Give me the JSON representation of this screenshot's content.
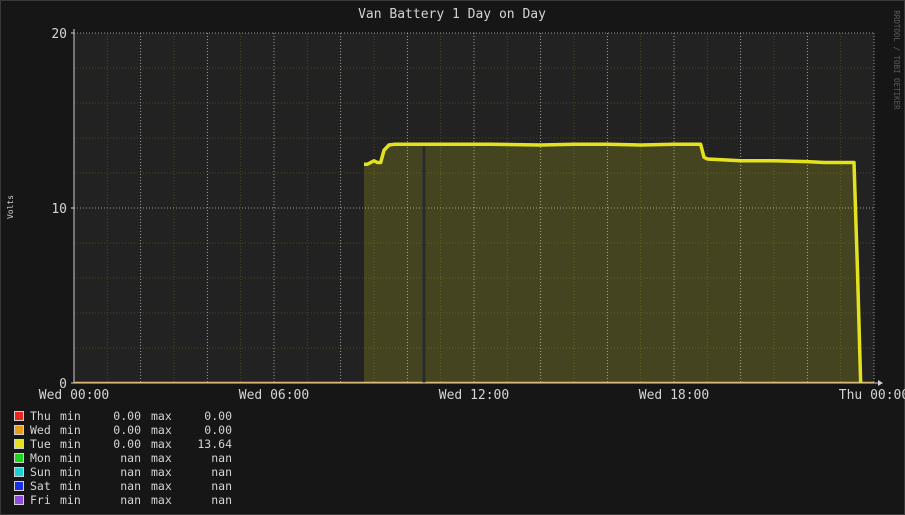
{
  "chart_data": {
    "type": "area",
    "title": "Van Battery 1 Day on Day",
    "ylabel": "Volts",
    "watermark": "RRDTOOL / TOBI OETIKER",
    "x_ticks": [
      "Wed 00:00",
      "Wed 06:00",
      "Wed 12:00",
      "Wed 18:00",
      "Thu 00:00"
    ],
    "xlim": [
      0,
      24
    ],
    "y_ticks": [
      "0",
      "10",
      "20"
    ],
    "ylim": [
      0,
      20
    ],
    "grid": true,
    "series": [
      {
        "name": "Thu",
        "color": "#e8281e",
        "min": "0.00",
        "max": "0.00",
        "x": [
          0,
          24
        ],
        "y": [
          0,
          0
        ]
      },
      {
        "name": "Wed",
        "color": "#e89c1e",
        "min": "0.00",
        "max": "0.00",
        "x": [
          0,
          24
        ],
        "y": [
          0,
          0
        ]
      },
      {
        "name": "Tue",
        "color": "#e4e21e",
        "min": "0.00",
        "max": "13.64",
        "x": [
          8.7,
          8.8,
          9.0,
          9.1,
          9.2,
          9.3,
          9.45,
          9.6,
          10.0,
          11.0,
          12.5,
          14.0,
          15.0,
          16.0,
          17.0,
          18.0,
          18.8,
          18.9,
          19.0,
          19.5,
          20.0,
          21.0,
          22.0,
          22.5,
          23.4,
          23.5,
          23.6
        ],
        "y": [
          12.5,
          12.5,
          12.7,
          12.6,
          12.6,
          13.3,
          13.6,
          13.64,
          13.64,
          13.64,
          13.64,
          13.6,
          13.64,
          13.64,
          13.6,
          13.64,
          13.64,
          12.9,
          12.8,
          12.75,
          12.7,
          12.7,
          12.65,
          12.6,
          12.6,
          6.7,
          0
        ]
      },
      {
        "name": "Mon",
        "color": "#1ed41e",
        "min": "nan",
        "max": "nan",
        "x": [],
        "y": []
      },
      {
        "name": "Sun",
        "color": "#1ecfd4",
        "min": "nan",
        "max": "nan",
        "x": [],
        "y": []
      },
      {
        "name": "Sat",
        "color": "#1e2ee8",
        "min": "nan",
        "max": "nan",
        "x": [],
        "y": []
      },
      {
        "name": "Fri",
        "color": "#8e4ed8",
        "min": "nan",
        "max": "nan",
        "x": [],
        "y": []
      }
    ],
    "gaps": [
      {
        "x": 10.5
      }
    ],
    "legend_labels": {
      "min": "min",
      "max": "max"
    },
    "legend_placement": "bottom-left"
  }
}
